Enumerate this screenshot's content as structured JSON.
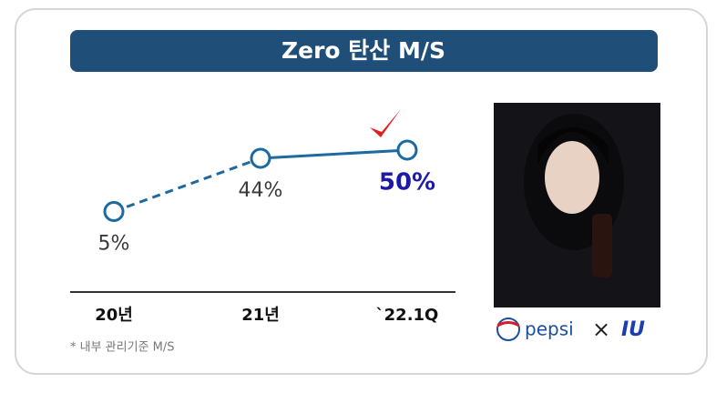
{
  "chart_data": {
    "type": "line",
    "title": "Zero 탄산 M/S",
    "categories": [
      "20년",
      "21년",
      "`22.1Q"
    ],
    "values": [
      5,
      44,
      50
    ],
    "value_labels": [
      "5%",
      "44%",
      "50%"
    ],
    "value_label_colors": [
      "#3a3a3a",
      "#3a3a3a",
      "#1c1aa6"
    ],
    "color": "#1c6aa0",
    "line_styles": [
      "dashed",
      "solid"
    ],
    "ylim": [
      -40,
      60
    ],
    "note": "* 내부 관리기준 M/S",
    "brand": {
      "left": "pepsi",
      "separator": "×",
      "right": "IU"
    }
  }
}
